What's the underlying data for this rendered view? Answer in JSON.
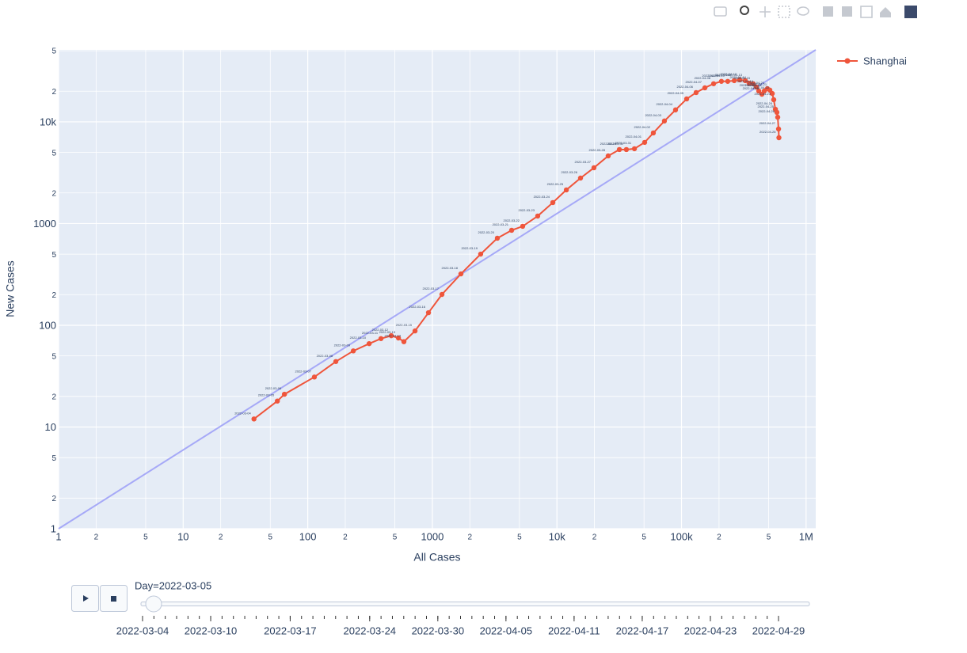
{
  "chart_data": {
    "type": "line",
    "xlabel": "All Cases",
    "ylabel": "New Cases",
    "xscale": "log",
    "yscale": "log",
    "grid": true,
    "legend": "top-right",
    "xlim": [
      1,
      1195000
    ],
    "ylim": [
      1,
      51000
    ],
    "xticks": [
      1,
      2,
      5,
      10,
      {
        "value": 20,
        "label": "2"
      },
      {
        "value": 50,
        "label": "5"
      },
      100,
      {
        "value": 200,
        "label": "2"
      },
      {
        "value": 500,
        "label": "5"
      },
      1000,
      {
        "value": 2000,
        "label": "2"
      },
      {
        "value": 5000,
        "label": "5"
      },
      {
        "value": 10000,
        "label": "10k"
      },
      {
        "value": 20000,
        "label": "2"
      },
      {
        "value": 50000,
        "label": "5"
      },
      {
        "value": 100000,
        "label": "100k"
      },
      {
        "value": 200000,
        "label": "2"
      },
      {
        "value": 500000,
        "label": "5"
      },
      {
        "value": 1000000,
        "label": "1M"
      }
    ],
    "yticks": [
      1,
      2,
      5,
      10,
      {
        "value": 20,
        "label": "2"
      },
      {
        "value": 50,
        "label": "5"
      },
      100,
      {
        "value": 200,
        "label": "2"
      },
      {
        "value": 500,
        "label": "5"
      },
      1000,
      {
        "value": 2000,
        "label": "2"
      },
      {
        "value": 5000,
        "label": "5"
      },
      {
        "value": 10000,
        "label": "10k"
      },
      {
        "value": 20000,
        "label": "2"
      },
      {
        "value": 50000,
        "label": "5"
      }
    ],
    "reference_line": {
      "color": "#a6a9f7",
      "x": [
        1,
        1195000
      ],
      "y": [
        1,
        51000
      ]
    },
    "series": [
      {
        "name": "Shanghai",
        "color": "#ef553b",
        "x": [
          37,
          57,
          65,
          113,
          168,
          232,
          311,
          387,
          468,
          534,
          591,
          726,
          931,
          1194,
          1696,
          2443,
          3324,
          4330,
          5310,
          7010,
          9270,
          11900,
          15460,
          19830,
          25800,
          31700,
          36100,
          41900,
          50600,
          59400,
          72900,
          89500,
          110000,
          131000,
          154000,
          181000,
          209000,
          235000,
          265000,
          293000,
          325000,
          349000,
          376000,
          399000,
          417000,
          442000,
          462000,
          489000,
          512000,
          535000,
          550000,
          567000,
          583000,
          592000,
          601000,
          605000
        ],
        "values": [
          12,
          18,
          21,
          31,
          44,
          56,
          66,
          74,
          79,
          75,
          69,
          88,
          133,
          201,
          320,
          501,
          718,
          859,
          940,
          1186,
          1608,
          2142,
          2800,
          3538,
          4625,
          5340,
          5340,
          5440,
          6280,
          7780,
          10190,
          13100,
          16800,
          19400,
          21600,
          23700,
          25000,
          25000,
          25400,
          25900,
          25400,
          24000,
          23700,
          22000,
          20100,
          18700,
          20100,
          21200,
          20500,
          19000,
          16500,
          13300,
          12400,
          11100,
          8500,
          6980
        ],
        "text": [
          "2022-03-04",
          "2022-03-05",
          "2022-03-06",
          "2022-03-07",
          "2022-03-08",
          "2022-03-09",
          "2022-03-10",
          "2022-03-11",
          "2022-03-12",
          "2022-03-13",
          "2022-03-14",
          "2022-03-15",
          "2022-03-16",
          "2022-03-17",
          "2022-03-18",
          "2022-03-19",
          "2022-03-20",
          "2022-03-21",
          "2022-03-22",
          "2022-03-23",
          "2022-03-24",
          "2022-03-25",
          "2022-03-26",
          "2022-03-27",
          "2022-03-28",
          "2022-03-29",
          "2022-03-30",
          "2022-03-31",
          "2022-04-01",
          "2022-04-02",
          "2022-04-03",
          "2022-04-04",
          "2022-04-05",
          "2022-04-06",
          "2022-04-07",
          "2022-04-08",
          "2022-04-09",
          "2022-04-10",
          "2022-04-11",
          "2022-04-12",
          "2022-04-13",
          "2022-04-14",
          "2022-04-15",
          "2022-04-16",
          "2022-04-17",
          "2022-04-18",
          "2022-04-19",
          "2022-04-20",
          "2022-04-21",
          "2022-04-22",
          "2022-04-23",
          "2022-04-24",
          "2022-04-25",
          "2022-04-26",
          "2022-04-27",
          "2022-04-28"
        ]
      }
    ]
  },
  "slider": {
    "current": "Day=2022-03-05",
    "labels": [
      "2022-03-04",
      "2022-03-10",
      "2022-03-17",
      "2022-03-24",
      "2022-03-30",
      "2022-04-05",
      "2022-04-11",
      "2022-04-17",
      "2022-04-23",
      "2022-04-29"
    ]
  }
}
